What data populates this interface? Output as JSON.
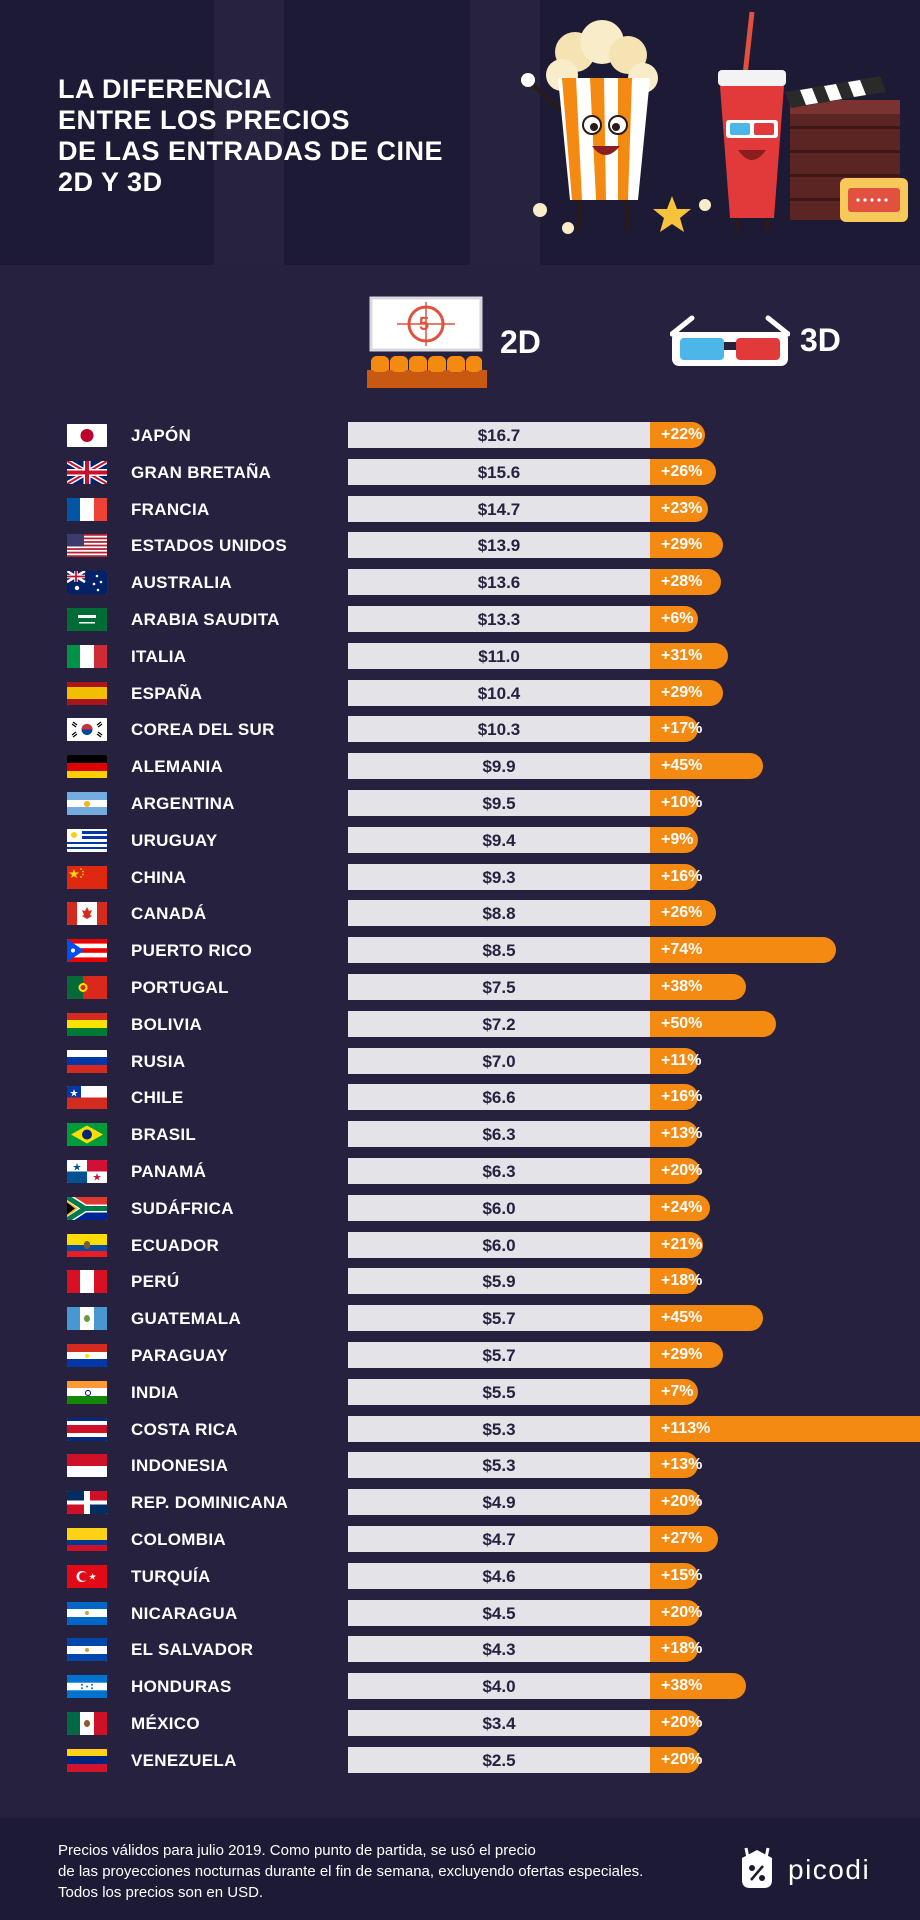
{
  "title": "LA DIFERENCIA\nENTRE LOS PRECIOS\nDE LAS ENTRADAS DE CINE\n2D Y 3D",
  "legend": {
    "label_2d": "2D",
    "label_3d": "3D",
    "screen_number": "5"
  },
  "colors": {
    "background": "#25213f",
    "header_background": "#1d1a35",
    "bar_2d": "#e4e3e8",
    "bar_3d": "#f58a12",
    "text": "#ffffff",
    "price_text": "#25213f"
  },
  "chart_data": {
    "type": "bar",
    "title": "LA DIFERENCIA ENTRE LOS PRECIOS DE LAS ENTRADAS DE CINE 2D Y 3D",
    "orientation": "horizontal",
    "unit": "USD",
    "series": [
      {
        "name": "2D",
        "kind": "price"
      },
      {
        "name": "3D",
        "kind": "percent_increase_over_2D"
      }
    ],
    "rows": [
      {
        "country": "JAPÓN",
        "flag": "japan-flag-icon",
        "price": "$16.7",
        "price_2d": 16.7,
        "pct_label": "+22%",
        "pct_3d": 22
      },
      {
        "country": "GRAN BRETAÑA",
        "flag": "united-kingdom-flag-icon",
        "price": "$15.6",
        "price_2d": 15.6,
        "pct_label": "+26%",
        "pct_3d": 26
      },
      {
        "country": "FRANCIA",
        "flag": "france-flag-icon",
        "price": "$14.7",
        "price_2d": 14.7,
        "pct_label": "+23%",
        "pct_3d": 23
      },
      {
        "country": "ESTADOS UNIDOS",
        "flag": "usa-flag-icon",
        "price": "$13.9",
        "price_2d": 13.9,
        "pct_label": "+29%",
        "pct_3d": 29
      },
      {
        "country": "AUSTRALIA",
        "flag": "australia-flag-icon",
        "price": "$13.6",
        "price_2d": 13.6,
        "pct_label": "+28%",
        "pct_3d": 28
      },
      {
        "country": "ARABIA SAUDITA",
        "flag": "saudi-arabia-flag-icon",
        "price": "$13.3",
        "price_2d": 13.3,
        "pct_label": "+6%",
        "pct_3d": 6
      },
      {
        "country": "ITALIA",
        "flag": "italy-flag-icon",
        "price": "$11.0",
        "price_2d": 11.0,
        "pct_label": "+31%",
        "pct_3d": 31
      },
      {
        "country": "ESPAÑA",
        "flag": "spain-flag-icon",
        "price": "$10.4",
        "price_2d": 10.4,
        "pct_label": "+29%",
        "pct_3d": 29
      },
      {
        "country": "COREA DEL SUR",
        "flag": "south-korea-flag-icon",
        "price": "$10.3",
        "price_2d": 10.3,
        "pct_label": "+17%",
        "pct_3d": 17
      },
      {
        "country": "ALEMANIA",
        "flag": "germany-flag-icon",
        "price": "$9.9",
        "price_2d": 9.9,
        "pct_label": "+45%",
        "pct_3d": 45
      },
      {
        "country": "ARGENTINA",
        "flag": "argentina-flag-icon",
        "price": "$9.5",
        "price_2d": 9.5,
        "pct_label": "+10%",
        "pct_3d": 10
      },
      {
        "country": "URUGUAY",
        "flag": "uruguay-flag-icon",
        "price": "$9.4",
        "price_2d": 9.4,
        "pct_label": "+9%",
        "pct_3d": 9
      },
      {
        "country": "CHINA",
        "flag": "china-flag-icon",
        "price": "$9.3",
        "price_2d": 9.3,
        "pct_label": "+16%",
        "pct_3d": 16
      },
      {
        "country": "CANADÁ",
        "flag": "canada-flag-icon",
        "price": "$8.8",
        "price_2d": 8.8,
        "pct_label": "+26%",
        "pct_3d": 26
      },
      {
        "country": "PUERTO RICO",
        "flag": "puerto-rico-flag-icon",
        "price": "$8.5",
        "price_2d": 8.5,
        "pct_label": "+74%",
        "pct_3d": 74
      },
      {
        "country": "PORTUGAL",
        "flag": "portugal-flag-icon",
        "price": "$7.5",
        "price_2d": 7.5,
        "pct_label": "+38%",
        "pct_3d": 38
      },
      {
        "country": "BOLIVIA",
        "flag": "bolivia-flag-icon",
        "price": "$7.2",
        "price_2d": 7.2,
        "pct_label": "+50%",
        "pct_3d": 50
      },
      {
        "country": "RUSIA",
        "flag": "russia-flag-icon",
        "price": "$7.0",
        "price_2d": 7.0,
        "pct_label": "+11%",
        "pct_3d": 11
      },
      {
        "country": "CHILE",
        "flag": "chile-flag-icon",
        "price": "$6.6",
        "price_2d": 6.6,
        "pct_label": "+16%",
        "pct_3d": 16
      },
      {
        "country": "BRASIL",
        "flag": "brazil-flag-icon",
        "price": "$6.3",
        "price_2d": 6.3,
        "pct_label": "+13%",
        "pct_3d": 13
      },
      {
        "country": "PANAMÁ",
        "flag": "panama-flag-icon",
        "price": "$6.3",
        "price_2d": 6.3,
        "pct_label": "+20%",
        "pct_3d": 20
      },
      {
        "country": "SUDÁFRICA",
        "flag": "south-africa-flag-icon",
        "price": "$6.0",
        "price_2d": 6.0,
        "pct_label": "+24%",
        "pct_3d": 24
      },
      {
        "country": "ECUADOR",
        "flag": "ecuador-flag-icon",
        "price": "$6.0",
        "price_2d": 6.0,
        "pct_label": "+21%",
        "pct_3d": 21
      },
      {
        "country": "PERÚ",
        "flag": "peru-flag-icon",
        "price": "$5.9",
        "price_2d": 5.9,
        "pct_label": "+18%",
        "pct_3d": 18
      },
      {
        "country": "GUATEMALA",
        "flag": "guatemala-flag-icon",
        "price": "$5.7",
        "price_2d": 5.7,
        "pct_label": "+45%",
        "pct_3d": 45
      },
      {
        "country": "PARAGUAY",
        "flag": "paraguay-flag-icon",
        "price": "$5.7",
        "price_2d": 5.7,
        "pct_label": "+29%",
        "pct_3d": 29
      },
      {
        "country": "INDIA",
        "flag": "india-flag-icon",
        "price": "$5.5",
        "price_2d": 5.5,
        "pct_label": "+7%",
        "pct_3d": 7
      },
      {
        "country": "COSTA RICA",
        "flag": "costa-rica-flag-icon",
        "price": "$5.3",
        "price_2d": 5.3,
        "pct_label": "+113%",
        "pct_3d": 113
      },
      {
        "country": "INDONESIA",
        "flag": "indonesia-flag-icon",
        "price": "$5.3",
        "price_2d": 5.3,
        "pct_label": "+13%",
        "pct_3d": 13
      },
      {
        "country": "REP. DOMINICANA",
        "flag": "dominican-republic-flag-icon",
        "price": "$4.9",
        "price_2d": 4.9,
        "pct_label": "+20%",
        "pct_3d": 20
      },
      {
        "country": "COLOMBIA",
        "flag": "colombia-flag-icon",
        "price": "$4.7",
        "price_2d": 4.7,
        "pct_label": "+27%",
        "pct_3d": 27
      },
      {
        "country": "TURQUÍA",
        "flag": "turkey-flag-icon",
        "price": "$4.6",
        "price_2d": 4.6,
        "pct_label": "+15%",
        "pct_3d": 15
      },
      {
        "country": "NICARAGUA",
        "flag": "nicaragua-flag-icon",
        "price": "$4.5",
        "price_2d": 4.5,
        "pct_label": "+20%",
        "pct_3d": 20
      },
      {
        "country": "EL SALVADOR",
        "flag": "el-salvador-flag-icon",
        "price": "$4.3",
        "price_2d": 4.3,
        "pct_label": "+18%",
        "pct_3d": 18
      },
      {
        "country": "HONDURAS",
        "flag": "honduras-flag-icon",
        "price": "$4.0",
        "price_2d": 4.0,
        "pct_label": "+38%",
        "pct_3d": 38
      },
      {
        "country": "MÉXICO",
        "flag": "mexico-flag-icon",
        "price": "$3.4",
        "price_2d": 3.4,
        "pct_label": "+20%",
        "pct_3d": 20
      },
      {
        "country": "VENEZUELA",
        "flag": "venezuela-flag-icon",
        "price": "$2.5",
        "price_2d": 2.5,
        "pct_label": "+20%",
        "pct_3d": 20
      }
    ]
  },
  "footer": {
    "note_lines": [
      "Precios válidos para julio 2019. Como punto de partida, se usó el precio",
      "de las proyecciones nocturnas durante el fin de semana, excluyendo ofertas especiales.",
      "Todos los precios son en USD."
    ],
    "brand": "picodi"
  }
}
